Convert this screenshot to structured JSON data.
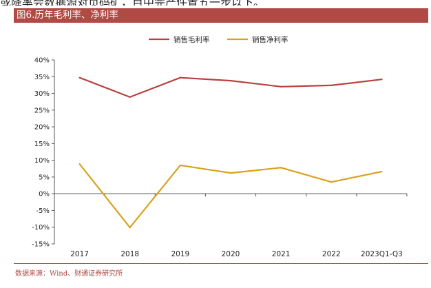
{
  "top_text": "或降率会数据源对页码矿，目中完产件置五一步以下。",
  "header": {
    "title": "图6.历年毛利率、净利率"
  },
  "source_note": "数据来源：Wind、财通证券研究所",
  "chart_data": {
    "type": "line",
    "categories": [
      "2017",
      "2018",
      "2019",
      "2020",
      "2021",
      "2022",
      "2023Q1-Q3"
    ],
    "ylim": [
      -15,
      40
    ],
    "yticks": [
      -15,
      -10,
      -5,
      0,
      5,
      10,
      15,
      20,
      25,
      30,
      35,
      40
    ],
    "ytick_labels": [
      "-15%",
      "-10%",
      "-5%",
      "0%",
      "5%",
      "10%",
      "15%",
      "20%",
      "25%",
      "30%",
      "35%",
      "40%"
    ],
    "grid": false,
    "legend_position": "top-center",
    "series": [
      {
        "name": "销售毛利率",
        "color": "#b8403f",
        "values": [
          34.7,
          28.9,
          34.7,
          33.8,
          32.0,
          32.4,
          34.2
        ]
      },
      {
        "name": "销售净利率",
        "color": "#d9a11c",
        "values": [
          8.9,
          -10.1,
          8.5,
          6.2,
          7.8,
          3.5,
          6.6
        ]
      }
    ],
    "axis_color": "#555555",
    "text_color": "#222222"
  }
}
